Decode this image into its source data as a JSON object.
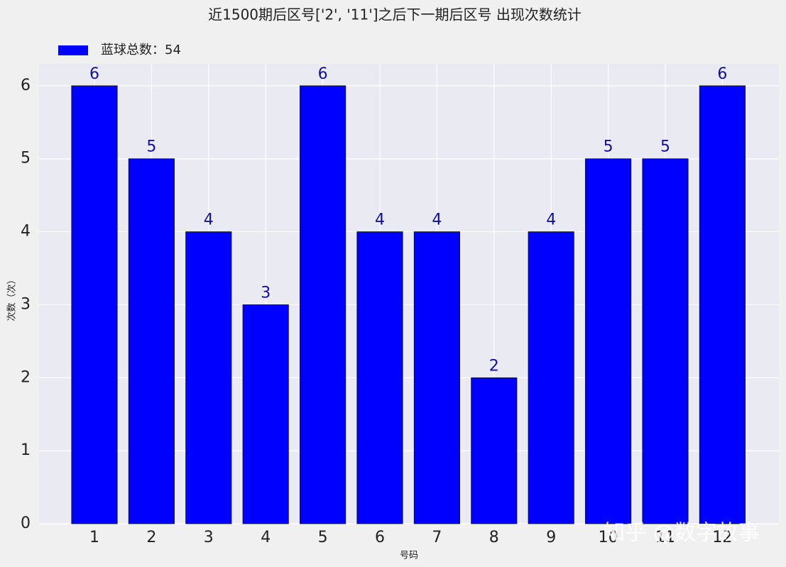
{
  "chart_data": {
    "type": "bar",
    "title": "近1500期后区号['2', '11']之后下一期后区号 出现次数统计",
    "x_label": "号码",
    "y_label": "次数（次）",
    "categories": [
      "1",
      "2",
      "3",
      "4",
      "5",
      "6",
      "7",
      "8",
      "9",
      "10",
      "11",
      "12"
    ],
    "series": [
      {
        "name": "蓝球总数：54",
        "color": "#0000ff",
        "values": [
          6,
          5,
          4,
          3,
          6,
          4,
          4,
          2,
          4,
          5,
          5,
          6
        ]
      }
    ],
    "ylim": [
      0,
      6.3
    ],
    "yticks": [
      0,
      1,
      2,
      3,
      4,
      5,
      6
    ],
    "grid": true,
    "legend": "top-left",
    "watermark": "知乎 @数字故事"
  }
}
